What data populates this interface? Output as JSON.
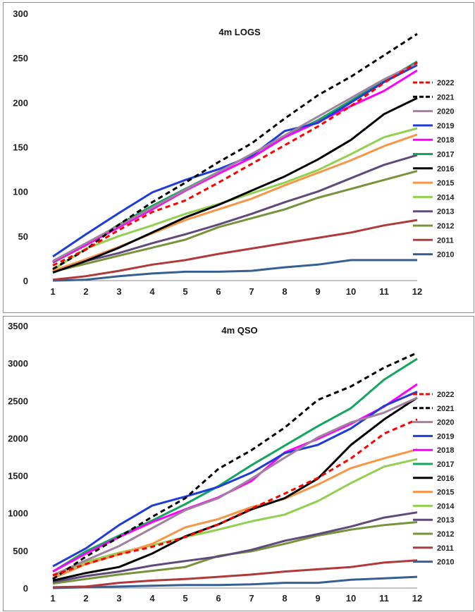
{
  "chart_data": [
    {
      "type": "line",
      "title": "4m LOGS",
      "xlabel": "",
      "ylabel": "",
      "x": [
        1,
        2,
        3,
        4,
        5,
        6,
        7,
        8,
        9,
        10,
        11,
        12
      ],
      "xlim": [
        1,
        12
      ],
      "ylim": [
        0,
        300
      ],
      "yticks": [
        0,
        50,
        100,
        150,
        200,
        250,
        300
      ],
      "grid": false,
      "legend_position": "right",
      "series": [
        {
          "name": "2022",
          "color": "#ff0000",
          "dash": true,
          "values": [
            17,
            35,
            57,
            77,
            90,
            110,
            131,
            152,
            173,
            196,
            222,
            245
          ]
        },
        {
          "name": "2021",
          "color": "#000000",
          "dash": true,
          "values": [
            13,
            35,
            63,
            88,
            110,
            133,
            154,
            182,
            208,
            229,
            253,
            277
          ]
        },
        {
          "name": "2020",
          "color": "#a0829c",
          "dash": false,
          "values": [
            22,
            42,
            62,
            82,
            102,
            122,
            142,
            163,
            184,
            205,
            226,
            244
          ]
        },
        {
          "name": "2019",
          "color": "#1f3cdb",
          "dash": false,
          "values": [
            27,
            52,
            76,
            99,
            113,
            125,
            140,
            168,
            177,
            200,
            223,
            242
          ]
        },
        {
          "name": "2018",
          "color": "#ff00ff",
          "dash": false,
          "values": [
            21,
            40,
            60,
            80,
            101,
            120,
            138,
            161,
            178,
            196,
            213,
            236
          ]
        },
        {
          "name": "2017",
          "color": "#12a65e",
          "dash": false,
          "values": [
            20,
            40,
            63,
            84,
            103,
            122,
            142,
            162,
            180,
            202,
            224,
            246
          ]
        },
        {
          "name": "2016",
          "color": "#000000",
          "dash": false,
          "values": [
            9,
            22,
            37,
            54,
            71,
            85,
            101,
            117,
            136,
            158,
            187,
            205
          ]
        },
        {
          "name": "2015",
          "color": "#f79646",
          "dash": false,
          "values": [
            11,
            24,
            38,
            53,
            68,
            80,
            92,
            107,
            121,
            135,
            151,
            164
          ]
        },
        {
          "name": "2014",
          "color": "#92d050",
          "dash": false,
          "values": [
            12,
            36,
            50,
            62,
            75,
            86,
            98,
            110,
            124,
            142,
            161,
            171
          ]
        },
        {
          "name": "2013",
          "color": "#604a7b",
          "dash": false,
          "values": [
            11,
            22,
            31,
            42,
            52,
            63,
            75,
            88,
            100,
            115,
            130,
            141
          ]
        },
        {
          "name": "2012",
          "color": "#77933c",
          "dash": false,
          "values": [
            10,
            19,
            28,
            37,
            46,
            60,
            70,
            80,
            93,
            103,
            113,
            123
          ]
        },
        {
          "name": "2011",
          "color": "#b03a3a",
          "dash": false,
          "values": [
            1,
            5,
            11,
            18,
            23,
            30,
            36,
            42,
            48,
            54,
            62,
            68
          ]
        },
        {
          "name": "2010",
          "color": "#376092",
          "dash": false,
          "values": [
            0,
            1,
            5,
            8,
            10,
            10,
            11,
            15,
            18,
            23,
            23,
            23
          ]
        }
      ]
    },
    {
      "type": "line",
      "title": "4m QSO",
      "xlabel": "",
      "ylabel": "",
      "x": [
        1,
        2,
        3,
        4,
        5,
        6,
        7,
        8,
        9,
        10,
        11,
        12
      ],
      "xlim": [
        1,
        12
      ],
      "ylim": [
        0,
        3500
      ],
      "yticks": [
        0,
        500,
        1000,
        1500,
        2000,
        2500,
        3000,
        3500
      ],
      "grid": false,
      "legend_position": "right",
      "series": [
        {
          "name": "2022",
          "color": "#ff0000",
          "dash": true,
          "values": [
            170,
            320,
            450,
            550,
            680,
            850,
            1060,
            1260,
            1470,
            1730,
            2060,
            2250
          ]
        },
        {
          "name": "2021",
          "color": "#000000",
          "dash": true,
          "values": [
            120,
            420,
            680,
            950,
            1200,
            1590,
            1840,
            2140,
            2510,
            2690,
            2940,
            3140
          ]
        },
        {
          "name": "2020",
          "color": "#a0829c",
          "dash": false,
          "values": [
            170,
            370,
            560,
            800,
            1040,
            1200,
            1460,
            1740,
            2010,
            2210,
            2340,
            2540
          ]
        },
        {
          "name": "2019",
          "color": "#1f3cdb",
          "dash": false,
          "values": [
            290,
            530,
            840,
            1100,
            1220,
            1350,
            1540,
            1800,
            1910,
            2130,
            2430,
            2620
          ]
        },
        {
          "name": "2018",
          "color": "#ff00ff",
          "dash": false,
          "values": [
            220,
            460,
            680,
            880,
            1050,
            1210,
            1430,
            1810,
            1990,
            2190,
            2420,
            2720
          ]
        },
        {
          "name": "2017",
          "color": "#12a65e",
          "dash": false,
          "values": [
            220,
            490,
            700,
            900,
            1120,
            1360,
            1640,
            1900,
            2160,
            2400,
            2780,
            3060
          ]
        },
        {
          "name": "2016",
          "color": "#000000",
          "dash": false,
          "values": [
            100,
            200,
            280,
            460,
            690,
            850,
            1050,
            1200,
            1460,
            1910,
            2250,
            2540
          ]
        },
        {
          "name": "2015",
          "color": "#f79646",
          "dash": false,
          "values": [
            130,
            320,
            450,
            590,
            810,
            920,
            1080,
            1190,
            1380,
            1600,
            1730,
            1850
          ]
        },
        {
          "name": "2014",
          "color": "#92d050",
          "dash": false,
          "values": [
            160,
            350,
            470,
            570,
            680,
            780,
            890,
            980,
            1160,
            1400,
            1620,
            1720
          ]
        },
        {
          "name": "2013",
          "color": "#604a7b",
          "dash": false,
          "values": [
            80,
            160,
            220,
            300,
            360,
            420,
            510,
            630,
            720,
            820,
            940,
            1010
          ]
        },
        {
          "name": "2012",
          "color": "#77933c",
          "dash": false,
          "values": [
            60,
            120,
            180,
            230,
            280,
            430,
            490,
            590,
            700,
            780,
            840,
            880
          ]
        },
        {
          "name": "2011",
          "color": "#b03a3a",
          "dash": false,
          "values": [
            10,
            20,
            70,
            100,
            120,
            150,
            180,
            220,
            250,
            280,
            340,
            370
          ]
        },
        {
          "name": "2010",
          "color": "#376092",
          "dash": false,
          "values": [
            0,
            10,
            20,
            30,
            40,
            40,
            50,
            70,
            70,
            110,
            130,
            150
          ]
        }
      ]
    }
  ]
}
